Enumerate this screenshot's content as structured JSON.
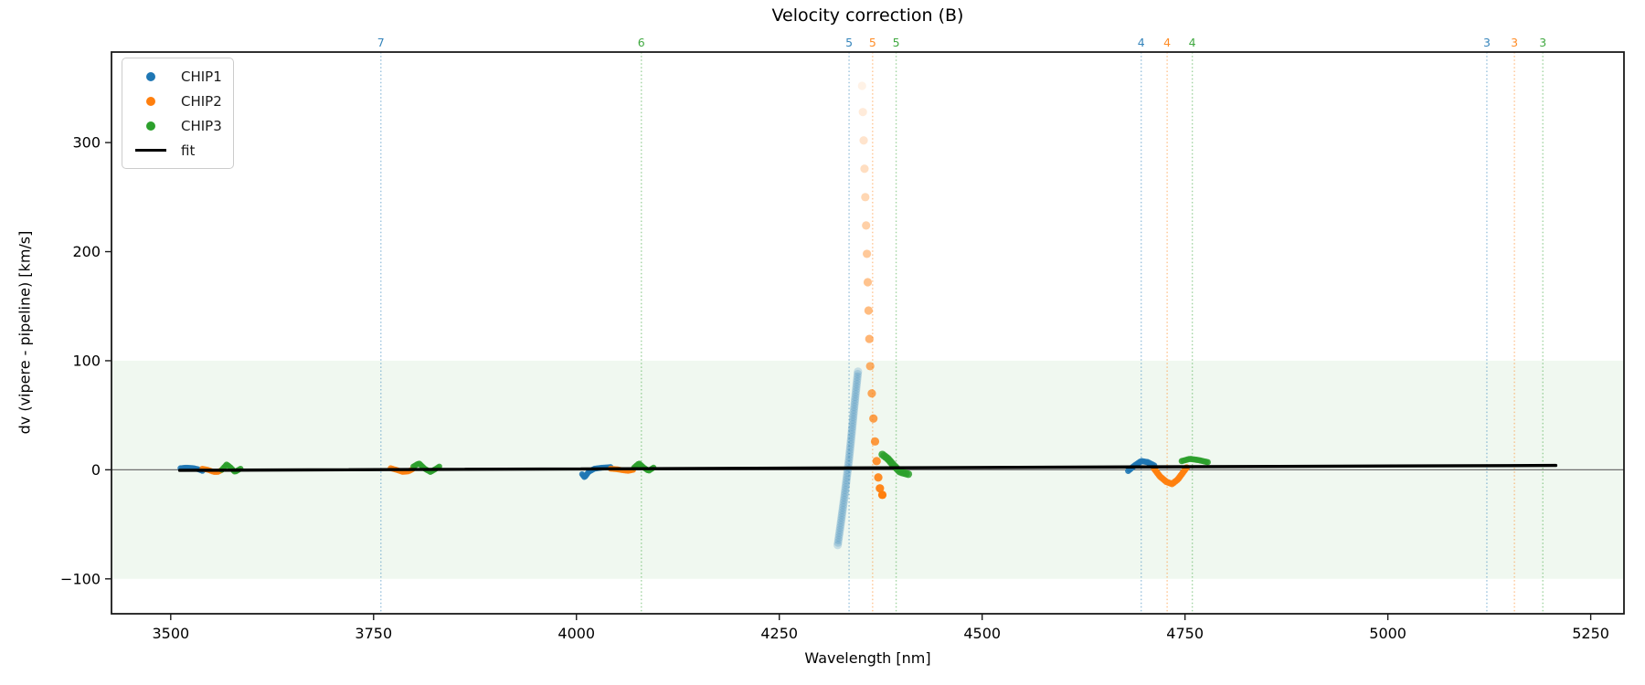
{
  "chart_data": {
    "type": "scatter",
    "title": "Velocity correction (B)",
    "xlabel": "Wavelength [nm]",
    "ylabel": "dv (vipere - pipeline) [km/s]",
    "xlim": [
      3427,
      5291
    ],
    "ylim": [
      -132,
      383
    ],
    "x_ticks": [
      3500,
      3750,
      4000,
      4250,
      4500,
      4750,
      5000,
      5250
    ],
    "y_ticks": [
      -100,
      0,
      100,
      200,
      300
    ],
    "grid": false,
    "legend_position": "upper left",
    "colors": {
      "CHIP1": "#1f77b4",
      "CHIP2": "#ff7f0e",
      "CHIP3": "#2ca02c",
      "fit": "#000000"
    },
    "shaded_band": {
      "ymin": -100,
      "ymax": 100,
      "color": "#2ca02c",
      "alpha": 0.07
    },
    "zero_line": {
      "y": 0,
      "color": "#6e6e6e"
    },
    "fit_line": {
      "label": "fit",
      "color": "#000000",
      "x": [
        3511,
        5207
      ],
      "y": [
        -0.5,
        4
      ]
    },
    "order_lines": [
      {
        "label": "7",
        "chip": "CHIP1",
        "wavelength": 3759
      },
      {
        "label": "6",
        "chip": "CHIP3",
        "wavelength": 4080
      },
      {
        "label": "5",
        "chip": "CHIP1",
        "wavelength": 4336
      },
      {
        "label": "5",
        "chip": "CHIP2",
        "wavelength": 4365
      },
      {
        "label": "5",
        "chip": "CHIP3",
        "wavelength": 4394
      },
      {
        "label": "4",
        "chip": "CHIP1",
        "wavelength": 4696
      },
      {
        "label": "4",
        "chip": "CHIP2",
        "wavelength": 4728
      },
      {
        "label": "4",
        "chip": "CHIP3",
        "wavelength": 4759
      },
      {
        "label": "3",
        "chip": "CHIP1",
        "wavelength": 5122
      },
      {
        "label": "3",
        "chip": "CHIP2",
        "wavelength": 5156
      },
      {
        "label": "3",
        "chip": "CHIP3",
        "wavelength": 5191
      }
    ],
    "series": [
      {
        "name": "CHIP1",
        "chip": "CHIP1",
        "clusters": [
          {
            "mode": "path",
            "radius": 3.2,
            "alpha": 0.9,
            "points": [
              [
                3512,
                1.5
              ],
              [
                3520,
                2
              ],
              [
                3528,
                1.5
              ],
              [
                3534,
                0.5
              ],
              [
                3539,
                -1
              ]
            ]
          },
          {
            "mode": "path",
            "radius": 3.2,
            "alpha": 0.9,
            "points": [
              [
                4007,
                -4
              ],
              [
                4010,
                -7
              ],
              [
                4015,
                -2
              ],
              [
                4022,
                1
              ],
              [
                4032,
                2
              ],
              [
                4042,
                2.5
              ]
            ]
          },
          {
            "mode": "path",
            "radius": 4.6,
            "alpha": 0.2,
            "points": [
              [
                4322,
                -69
              ],
              [
                4326,
                -48
              ],
              [
                4330,
                -26
              ],
              [
                4333,
                -8
              ],
              [
                4336,
                10
              ],
              [
                4339,
                32
              ],
              [
                4342,
                55
              ],
              [
                4345,
                76
              ],
              [
                4347,
                90
              ]
            ]
          },
          {
            "mode": "path",
            "radius": 3.4,
            "alpha": 0.9,
            "points": [
              [
                4680,
                -1
              ],
              [
                4688,
                4
              ],
              [
                4696,
                8
              ],
              [
                4704,
                7
              ],
              [
                4712,
                4
              ]
            ]
          }
        ]
      },
      {
        "name": "CHIP2",
        "chip": "CHIP2",
        "clusters": [
          {
            "mode": "path",
            "radius": 3.2,
            "alpha": 0.9,
            "points": [
              [
                3539,
                1
              ],
              [
                3546,
                0
              ],
              [
                3553,
                -2
              ],
              [
                3558,
                -2
              ],
              [
                3562,
                -0.5
              ]
            ]
          },
          {
            "mode": "path",
            "radius": 3.2,
            "alpha": 0.9,
            "points": [
              [
                3771,
                1.5
              ],
              [
                3778,
                0
              ],
              [
                3786,
                -2
              ],
              [
                3793,
                -1.5
              ],
              [
                3798,
                0.5
              ]
            ]
          },
          {
            "mode": "path",
            "radius": 3.2,
            "alpha": 0.9,
            "points": [
              [
                4042,
                1
              ],
              [
                4050,
                0.5
              ],
              [
                4058,
                -0.5
              ],
              [
                4064,
                -1
              ],
              [
                4070,
                0
              ]
            ]
          },
          {
            "mode": "dots",
            "radius": 4.6,
            "alpha_start": 0.1,
            "alpha_end": 1.0,
            "points": [
              [
                4352,
                352
              ],
              [
                4353,
                328
              ],
              [
                4354,
                302
              ],
              [
                4355,
                276
              ],
              [
                4356,
                250
              ],
              [
                4357,
                224
              ],
              [
                4358,
                198
              ],
              [
                4359,
                172
              ],
              [
                4360,
                146
              ],
              [
                4361,
                120
              ],
              [
                4362,
                95
              ],
              [
                4364,
                70
              ],
              [
                4366,
                47
              ],
              [
                4368,
                26
              ],
              [
                4370,
                8
              ],
              [
                4372,
                -7
              ],
              [
                4374,
                -17
              ],
              [
                4377,
                -23
              ]
            ]
          },
          {
            "mode": "path",
            "radius": 3.6,
            "alpha": 0.9,
            "points": [
              [
                4712,
                1
              ],
              [
                4719,
                -6
              ],
              [
                4727,
                -11
              ],
              [
                4734,
                -13
              ],
              [
                4741,
                -9
              ],
              [
                4748,
                -2
              ],
              [
                4752,
                2
              ]
            ]
          }
        ]
      },
      {
        "name": "CHIP3",
        "chip": "CHIP3",
        "clusters": [
          {
            "mode": "path",
            "radius": 3.2,
            "alpha": 0.9,
            "points": [
              [
                3563,
                0
              ],
              [
                3569,
                5
              ],
              [
                3574,
                2
              ],
              [
                3579,
                -2
              ],
              [
                3586,
                1
              ]
            ]
          },
          {
            "mode": "path",
            "radius": 3.2,
            "alpha": 0.9,
            "points": [
              [
                3799,
                3
              ],
              [
                3806,
                6
              ],
              [
                3813,
                1
              ],
              [
                3820,
                -2
              ],
              [
                3827,
                1
              ],
              [
                3831,
                3
              ]
            ]
          },
          {
            "mode": "path",
            "radius": 3.2,
            "alpha": 0.9,
            "points": [
              [
                4071,
                2
              ],
              [
                4077,
                6
              ],
              [
                4083,
                2
              ],
              [
                4089,
                -1
              ],
              [
                4095,
                2
              ]
            ]
          },
          {
            "mode": "path",
            "radius": 4.2,
            "alpha": 0.85,
            "points": [
              [
                4377,
                14
              ],
              [
                4384,
                10
              ],
              [
                4391,
                4
              ],
              [
                4399,
                -2
              ],
              [
                4409,
                -4
              ]
            ]
          },
          {
            "mode": "path",
            "radius": 3.4,
            "alpha": 0.9,
            "points": [
              [
                4746,
                8
              ],
              [
                4756,
                10
              ],
              [
                4766,
                9
              ],
              [
                4778,
                7
              ]
            ]
          }
        ]
      }
    ]
  },
  "legend": {
    "entries": [
      {
        "label": "CHIP1",
        "marker": "dot",
        "chip": "CHIP1"
      },
      {
        "label": "CHIP2",
        "marker": "dot",
        "chip": "CHIP2"
      },
      {
        "label": "CHIP3",
        "marker": "dot",
        "chip": "CHIP3"
      },
      {
        "label": "fit",
        "marker": "line",
        "chip": "fit"
      }
    ]
  }
}
